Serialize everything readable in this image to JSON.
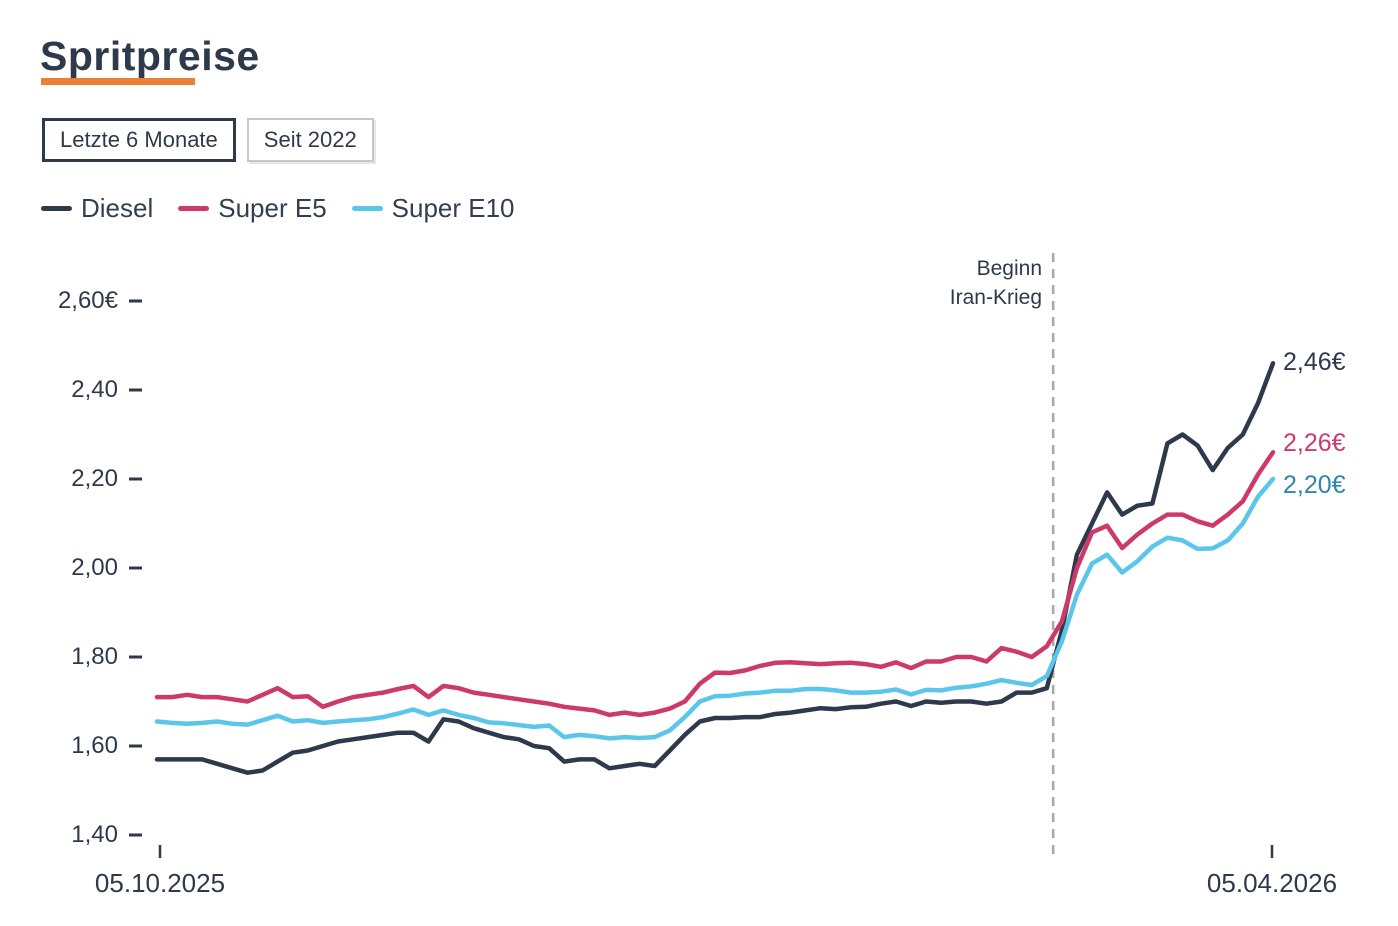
{
  "header": {
    "title": "Spritpreise",
    "accent_color": "#ea8033"
  },
  "controls": {
    "range_buttons": [
      {
        "label": "Letzte 6 Monate",
        "active": true
      },
      {
        "label": "Seit 2022",
        "active": false
      }
    ]
  },
  "chart_data": {
    "type": "line",
    "title": "Spritpreise",
    "unit": "EUR per liter",
    "grid": false,
    "legend_position": "top-left",
    "x_axis": {
      "tick_labels": [
        "05.10.2025",
        "05.04.2026"
      ],
      "range_note": "last 6 months, daily prices"
    },
    "y_axis": {
      "range": [
        1.4,
        2.6
      ],
      "ticks": [
        {
          "value": 2.6,
          "label": "2,60€"
        },
        {
          "value": 2.4,
          "label": "2,40"
        },
        {
          "value": 2.2,
          "label": "2,20"
        },
        {
          "value": 2.0,
          "label": "2,00"
        },
        {
          "value": 1.8,
          "label": "1,80"
        },
        {
          "value": 1.6,
          "label": "1,60"
        },
        {
          "value": 1.4,
          "label": "1,40"
        }
      ]
    },
    "annotation": {
      "lines": [
        "Beginn",
        "Iran-Krieg"
      ],
      "x_fraction": 0.803,
      "line_style": "vertical-dashed",
      "line_color": "#a8a8a8"
    },
    "series": [
      {
        "name": "Diesel",
        "color": "#2e3a4c",
        "end_label": "2,46€",
        "end_label_color": "#2e3a4c",
        "end_value": 2.46,
        "values": [
          1.57,
          1.57,
          1.57,
          1.57,
          1.56,
          1.55,
          1.54,
          1.545,
          1.565,
          1.585,
          1.59,
          1.6,
          1.61,
          1.615,
          1.62,
          1.625,
          1.63,
          1.63,
          1.61,
          1.66,
          1.655,
          1.64,
          1.63,
          1.62,
          1.615,
          1.6,
          1.595,
          1.565,
          1.57,
          1.57,
          1.55,
          1.555,
          1.56,
          1.555,
          1.59,
          1.625,
          1.655,
          1.663,
          1.663,
          1.665,
          1.665,
          1.672,
          1.675,
          1.68,
          1.685,
          1.683,
          1.687,
          1.688,
          1.695,
          1.7,
          1.69,
          1.7,
          1.697,
          1.7,
          1.7,
          1.695,
          1.7,
          1.72,
          1.72,
          1.73,
          1.86,
          2.03,
          2.1,
          2.17,
          2.12,
          2.14,
          2.145,
          2.28,
          2.3,
          2.275,
          2.22,
          2.27,
          2.3,
          2.37,
          2.46
        ]
      },
      {
        "name": "Super E5",
        "color": "#ce3a68",
        "end_label": "2,26€",
        "end_label_color": "#ce3a68",
        "end_value": 2.26,
        "values": [
          1.71,
          1.71,
          1.715,
          1.71,
          1.71,
          1.705,
          1.7,
          1.715,
          1.73,
          1.71,
          1.712,
          1.688,
          1.7,
          1.71,
          1.715,
          1.72,
          1.728,
          1.735,
          1.71,
          1.735,
          1.73,
          1.72,
          1.715,
          1.71,
          1.705,
          1.7,
          1.695,
          1.688,
          1.684,
          1.68,
          1.67,
          1.675,
          1.67,
          1.675,
          1.684,
          1.7,
          1.74,
          1.765,
          1.764,
          1.77,
          1.78,
          1.787,
          1.788,
          1.786,
          1.784,
          1.786,
          1.787,
          1.784,
          1.778,
          1.788,
          1.775,
          1.79,
          1.79,
          1.8,
          1.8,
          1.79,
          1.82,
          1.812,
          1.8,
          1.824,
          1.88,
          2.0,
          2.08,
          2.095,
          2.045,
          2.075,
          2.1,
          2.12,
          2.12,
          2.105,
          2.095,
          2.12,
          2.15,
          2.21,
          2.26
        ]
      },
      {
        "name": "Super E10",
        "color": "#5bc6ea",
        "end_label": "2,20€",
        "end_label_color": "#2f86ab",
        "end_value": 2.2,
        "values": [
          1.655,
          1.652,
          1.65,
          1.652,
          1.655,
          1.65,
          1.648,
          1.658,
          1.668,
          1.655,
          1.658,
          1.652,
          1.655,
          1.658,
          1.66,
          1.665,
          1.673,
          1.682,
          1.67,
          1.68,
          1.67,
          1.663,
          1.653,
          1.651,
          1.647,
          1.643,
          1.646,
          1.62,
          1.625,
          1.622,
          1.617,
          1.62,
          1.618,
          1.62,
          1.635,
          1.665,
          1.7,
          1.712,
          1.713,
          1.718,
          1.72,
          1.724,
          1.724,
          1.728,
          1.728,
          1.725,
          1.72,
          1.72,
          1.722,
          1.727,
          1.716,
          1.726,
          1.725,
          1.731,
          1.734,
          1.74,
          1.748,
          1.742,
          1.737,
          1.757,
          1.835,
          1.94,
          2.01,
          2.03,
          1.99,
          2.015,
          2.048,
          2.068,
          2.062,
          2.043,
          2.044,
          2.062,
          2.1,
          2.16,
          2.2
        ]
      }
    ]
  }
}
